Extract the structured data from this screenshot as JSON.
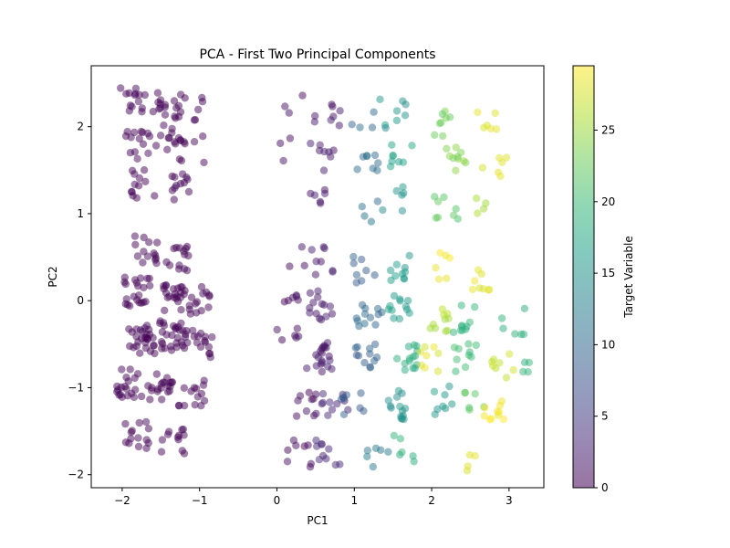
{
  "chart_data": {
    "type": "scatter",
    "title": "PCA - First Two Principal Components",
    "xlabel": "PC1",
    "ylabel": "PC2",
    "xlim": [
      -2.4,
      3.45
    ],
    "ylim": [
      -2.15,
      2.7
    ],
    "xticks": [
      -2,
      -1,
      0,
      1,
      2,
      3
    ],
    "yticks": [
      -2,
      -1,
      0,
      1,
      2
    ],
    "colorbar": {
      "label": "Target Variable",
      "range": [
        0,
        29.5
      ],
      "ticks": [
        0,
        5,
        10,
        15,
        20,
        25
      ],
      "colormap": "viridis"
    },
    "marker_alpha": 0.5,
    "grid": false,
    "clusters": [
      {
        "x": -1.85,
        "y": 2.3,
        "target": 0,
        "count": 14
      },
      {
        "x": -1.45,
        "y": 2.25,
        "target": 0,
        "count": 14
      },
      {
        "x": -1.1,
        "y": 2.2,
        "target": 0,
        "count": 10
      },
      {
        "x": -1.8,
        "y": 1.8,
        "target": 0,
        "count": 14
      },
      {
        "x": -1.4,
        "y": 1.85,
        "target": 0,
        "count": 12
      },
      {
        "x": -1.1,
        "y": 1.75,
        "target": 0,
        "count": 8
      },
      {
        "x": -1.75,
        "y": 1.35,
        "target": 0,
        "count": 12
      },
      {
        "x": -1.3,
        "y": 1.3,
        "target": 0,
        "count": 12
      },
      {
        "x": -1.7,
        "y": 0.6,
        "target": 0,
        "count": 14
      },
      {
        "x": -1.3,
        "y": 0.5,
        "target": 0,
        "count": 14
      },
      {
        "x": -1.8,
        "y": 0.1,
        "target": 0,
        "count": 22
      },
      {
        "x": -1.35,
        "y": 0.05,
        "target": 0,
        "count": 22
      },
      {
        "x": -1.0,
        "y": 0.0,
        "target": 0,
        "count": 14
      },
      {
        "x": -1.75,
        "y": -0.45,
        "target": 0,
        "count": 28
      },
      {
        "x": -1.35,
        "y": -0.4,
        "target": 0,
        "count": 28
      },
      {
        "x": -1.0,
        "y": -0.5,
        "target": 0,
        "count": 16
      },
      {
        "x": -1.9,
        "y": -0.95,
        "target": 0,
        "count": 20
      },
      {
        "x": -1.5,
        "y": -1.0,
        "target": 0,
        "count": 20
      },
      {
        "x": -1.1,
        "y": -1.05,
        "target": 0,
        "count": 14
      },
      {
        "x": -1.8,
        "y": -1.55,
        "target": 0,
        "count": 14
      },
      {
        "x": -1.35,
        "y": -1.6,
        "target": 0,
        "count": 12
      },
      {
        "x": 0.2,
        "y": 2.28,
        "target": 1,
        "count": 3
      },
      {
        "x": 0.65,
        "y": 2.15,
        "target": 2,
        "count": 8
      },
      {
        "x": 0.2,
        "y": 1.7,
        "target": 1,
        "count": 3
      },
      {
        "x": 0.6,
        "y": 1.65,
        "target": 2,
        "count": 8
      },
      {
        "x": 0.55,
        "y": 1.15,
        "target": 2,
        "count": 6
      },
      {
        "x": 0.3,
        "y": 0.55,
        "target": 1,
        "count": 3
      },
      {
        "x": 0.6,
        "y": 0.45,
        "target": 2,
        "count": 8
      },
      {
        "x": 0.15,
        "y": 0.05,
        "target": 1,
        "count": 6
      },
      {
        "x": 0.55,
        "y": -0.05,
        "target": 2,
        "count": 14
      },
      {
        "x": 0.15,
        "y": -0.45,
        "target": 1,
        "count": 6
      },
      {
        "x": 0.55,
        "y": -0.65,
        "target": 2,
        "count": 20
      },
      {
        "x": 0.35,
        "y": -1.2,
        "target": 1,
        "count": 10
      },
      {
        "x": 0.75,
        "y": -1.15,
        "target": 3,
        "count": 10
      },
      {
        "x": 0.3,
        "y": -1.75,
        "target": 1,
        "count": 8
      },
      {
        "x": 0.65,
        "y": -1.75,
        "target": 3,
        "count": 10
      },
      {
        "x": 1.1,
        "y": 2.05,
        "target": 10,
        "count": 4
      },
      {
        "x": 1.5,
        "y": 2.15,
        "target": 15,
        "count": 8
      },
      {
        "x": 1.2,
        "y": 1.6,
        "target": 11,
        "count": 8
      },
      {
        "x": 1.6,
        "y": 1.7,
        "target": 17,
        "count": 8
      },
      {
        "x": 1.2,
        "y": 1.05,
        "target": 11,
        "count": 4
      },
      {
        "x": 1.5,
        "y": 1.15,
        "target": 15,
        "count": 6
      },
      {
        "x": 1.1,
        "y": 0.35,
        "target": 9,
        "count": 8
      },
      {
        "x": 1.55,
        "y": 0.4,
        "target": 16,
        "count": 10
      },
      {
        "x": 1.2,
        "y": -0.2,
        "target": 10,
        "count": 12
      },
      {
        "x": 1.55,
        "y": -0.1,
        "target": 16,
        "count": 12
      },
      {
        "x": 1.15,
        "y": -0.65,
        "target": 9,
        "count": 12
      },
      {
        "x": 1.65,
        "y": -0.65,
        "target": 18,
        "count": 14
      },
      {
        "x": 1.0,
        "y": -1.15,
        "target": 8,
        "count": 8
      },
      {
        "x": 1.5,
        "y": -1.2,
        "target": 15,
        "count": 14
      },
      {
        "x": 1.3,
        "y": -1.8,
        "target": 12,
        "count": 6
      },
      {
        "x": 1.65,
        "y": -1.7,
        "target": 19,
        "count": 6
      },
      {
        "x": 2.15,
        "y": 2.05,
        "target": 23,
        "count": 8
      },
      {
        "x": 2.75,
        "y": 2.05,
        "target": 28,
        "count": 6
      },
      {
        "x": 2.3,
        "y": 1.6,
        "target": 24,
        "count": 10
      },
      {
        "x": 2.8,
        "y": 1.5,
        "target": 28,
        "count": 6
      },
      {
        "x": 2.2,
        "y": 1.05,
        "target": 22,
        "count": 8
      },
      {
        "x": 2.7,
        "y": 1.05,
        "target": 26,
        "count": 4
      },
      {
        "x": 2.1,
        "y": 0.4,
        "target": 29,
        "count": 6
      },
      {
        "x": 2.6,
        "y": 0.2,
        "target": 28,
        "count": 8
      },
      {
        "x": 2.1,
        "y": -0.2,
        "target": 26,
        "count": 10
      },
      {
        "x": 2.4,
        "y": -0.2,
        "target": 19,
        "count": 10
      },
      {
        "x": 3.05,
        "y": -0.25,
        "target": 19,
        "count": 6
      },
      {
        "x": 2.0,
        "y": -0.65,
        "target": 28,
        "count": 8
      },
      {
        "x": 2.45,
        "y": -0.65,
        "target": 20,
        "count": 10
      },
      {
        "x": 2.9,
        "y": -0.75,
        "target": 27,
        "count": 8
      },
      {
        "x": 3.1,
        "y": -0.7,
        "target": 19,
        "count": 4
      },
      {
        "x": 2.15,
        "y": -1.15,
        "target": 16,
        "count": 8
      },
      {
        "x": 2.55,
        "y": -1.1,
        "target": 22,
        "count": 6
      },
      {
        "x": 2.85,
        "y": -1.25,
        "target": 29,
        "count": 10
      },
      {
        "x": 2.6,
        "y": -1.8,
        "target": 28,
        "count": 4
      }
    ]
  }
}
